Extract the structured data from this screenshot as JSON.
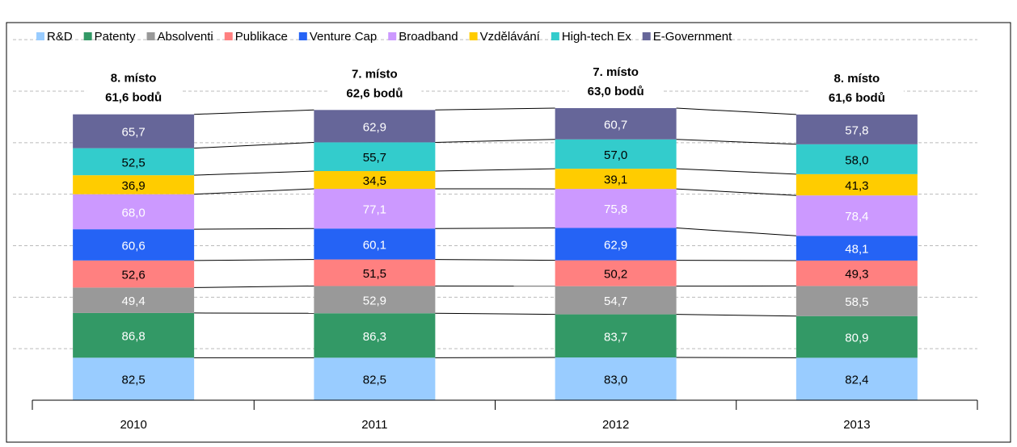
{
  "chart_data": {
    "type": "stacked_bar",
    "categories": [
      "2010",
      "2011",
      "2012",
      "2013"
    ],
    "annotations": [
      [
        "8. místo",
        "61,6 bodů"
      ],
      [
        "7. místo",
        "62,6 bodů"
      ],
      [
        "7. místo",
        "63,0 bodů"
      ],
      [
        "8. místo",
        "61,6 bodů"
      ]
    ],
    "series": [
      {
        "name": "R&D",
        "color": "#99ccff",
        "values": [
          82.5,
          82.5,
          83.0,
          82.4
        ],
        "value_labels": [
          "82,5",
          "82,5",
          "83,0",
          "82,4"
        ]
      },
      {
        "name": "Patenty",
        "color": "#339966",
        "values": [
          86.8,
          86.3,
          83.7,
          80.9
        ],
        "value_labels": [
          "86,8",
          "86,3",
          "83,7",
          "80,9"
        ]
      },
      {
        "name": "Absolventi",
        "color": "#999999",
        "values": [
          49.4,
          52.9,
          54.7,
          58.5
        ],
        "value_labels": [
          "49,4",
          "52,9",
          "54,7",
          "58,5"
        ]
      },
      {
        "name": "Publikace",
        "color": "#ff8080",
        "values": [
          52.6,
          51.5,
          50.2,
          49.3
        ],
        "value_labels": [
          "52,6",
          "51,5",
          "50,2",
          "49,3"
        ]
      },
      {
        "name": "Venture Cap",
        "color": "#2563f5",
        "values": [
          60.6,
          60.1,
          62.9,
          48.1
        ],
        "value_labels": [
          "60,6",
          "60,1",
          "62,9",
          "48,1"
        ]
      },
      {
        "name": "Broadband",
        "color": "#cc99ff",
        "values": [
          68.0,
          77.1,
          75.8,
          78.4
        ],
        "value_labels": [
          "68,0",
          "77,1",
          "75,8",
          "78,4"
        ]
      },
      {
        "name": "Vzdělávání",
        "color": "#ffcc00",
        "values": [
          36.9,
          34.5,
          39.1,
          41.3
        ],
        "value_labels": [
          "36,9",
          "34,5",
          "39,1",
          "41,3"
        ]
      },
      {
        "name": "High-tech Ex",
        "color": "#33cccc",
        "values": [
          52.5,
          55.7,
          57.0,
          58.0
        ],
        "value_labels": [
          "52,5",
          "55,7",
          "57,0",
          "58,0"
        ]
      },
      {
        "name": "E-Government",
        "color": "#666699",
        "values": [
          65.7,
          62.9,
          60.7,
          57.8
        ],
        "value_labels": [
          "65,7",
          "62,9",
          "60,7",
          "57,8"
        ]
      }
    ],
    "ylim": [
      0,
      730
    ],
    "yticks": [
      0,
      100,
      200,
      300,
      400,
      500,
      600,
      700
    ],
    "grid": true,
    "legend": "top"
  }
}
